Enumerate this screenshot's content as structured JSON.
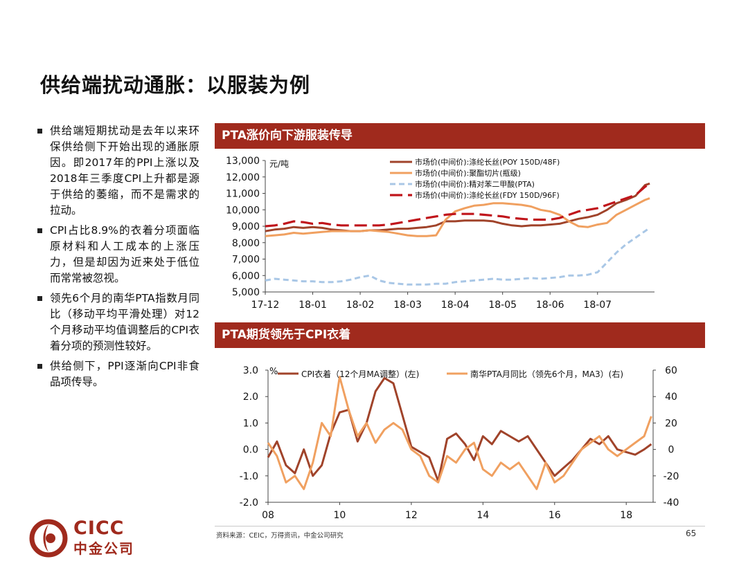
{
  "page": {
    "title": "供给端扰动通胀：以服装为例",
    "bullets": [
      "供给端短期扰动是去年以来环保供给侧下开始出现的通胀原因。即2017年的PPI上涨以及2018年三季度CPI上升都是源于供给的萎缩，而不是需求的拉动。",
      "CPI占比8.9%的衣着分项面临原材料和人工成本的上涨压力，但是却因为近来处于低位而常常被忽视。",
      "领先6个月的南华PTA指数月同比（移动平均平滑处理）对12个月移动平均值调整后的CPI衣着分项的预测性较好。",
      "供给侧下，PPI逐渐向CPI非食品项传导。"
    ],
    "source": "资料来源：CEIC，万得资讯，中金公司研究",
    "page_number": "65",
    "logo": {
      "en": "CICC",
      "cn": "中金公司"
    }
  },
  "colors": {
    "accent": "#A02A1D",
    "poy": "#A0432A",
    "pet": "#F0A060",
    "pta": "#A9C7E6",
    "fdy": "#C0151B",
    "cpi": "#A0432A",
    "pta_yoy": "#F0A060"
  },
  "chart_data": [
    {
      "type": "line",
      "title": "PTA涨价向下游服装传导",
      "unit_label": "元/吨",
      "ylim": [
        5000,
        13000
      ],
      "yticks": [
        5000,
        6000,
        7000,
        8000,
        9000,
        10000,
        11000,
        12000,
        13000
      ],
      "ytick_labels": [
        "5,000",
        "6,000",
        "7,000",
        "8,000",
        "9,000",
        "10,000",
        "11,000",
        "12,000",
        "13,000"
      ],
      "xlim": [
        0,
        8.2
      ],
      "xticks": [
        0,
        1,
        2,
        3,
        4,
        5,
        6,
        7
      ],
      "xtick_labels": [
        "17-12",
        "18-01",
        "18-02",
        "18-03",
        "18-04",
        "18-05",
        "18-06",
        "18-07"
      ],
      "legend": "top-right",
      "series": [
        {
          "name": "市场价(中间价):涤纶长丝(POY 150D/48F)",
          "style": "solid",
          "x": [
            0,
            0.2,
            0.4,
            0.6,
            0.8,
            1.0,
            1.2,
            1.4,
            1.6,
            1.8,
            2.0,
            2.2,
            2.4,
            2.6,
            2.8,
            3.0,
            3.2,
            3.4,
            3.6,
            3.8,
            4.0,
            4.2,
            4.4,
            4.6,
            4.8,
            5.0,
            5.2,
            5.4,
            5.6,
            5.8,
            6.0,
            6.2,
            6.4,
            6.6,
            6.8,
            7.0,
            7.2,
            7.4,
            7.6,
            7.8,
            8.0,
            8.1
          ],
          "y": [
            8700,
            8800,
            8850,
            8950,
            8900,
            8950,
            8900,
            8800,
            8750,
            8700,
            8700,
            8750,
            8750,
            8800,
            8850,
            8850,
            8900,
            8950,
            9050,
            9300,
            9300,
            9350,
            9350,
            9350,
            9300,
            9150,
            9050,
            9000,
            9050,
            9050,
            9100,
            9150,
            9300,
            9450,
            9550,
            9700,
            10000,
            10400,
            10600,
            10850,
            11500,
            11600
          ]
        },
        {
          "name": "市场价(中间价):聚酯切片(瓶级)",
          "style": "solid",
          "x": [
            0,
            0.2,
            0.4,
            0.6,
            0.8,
            1.0,
            1.2,
            1.4,
            1.6,
            1.8,
            2.0,
            2.2,
            2.4,
            2.6,
            2.8,
            3.0,
            3.2,
            3.4,
            3.6,
            3.8,
            4.0,
            4.2,
            4.4,
            4.6,
            4.8,
            5.0,
            5.2,
            5.4,
            5.6,
            5.8,
            6.0,
            6.2,
            6.4,
            6.6,
            6.8,
            7.0,
            7.2,
            7.4,
            7.6,
            7.8,
            8.0,
            8.1
          ],
          "y": [
            8400,
            8450,
            8500,
            8600,
            8550,
            8600,
            8650,
            8700,
            8700,
            8700,
            8700,
            8750,
            8700,
            8650,
            8550,
            8450,
            8400,
            8400,
            8450,
            9400,
            9900,
            10100,
            10250,
            10300,
            10400,
            10400,
            10350,
            10300,
            10200,
            10000,
            9900,
            9700,
            9300,
            9000,
            8950,
            9100,
            9200,
            9700,
            10000,
            10300,
            10600,
            10700
          ]
        },
        {
          "name": "市场价(中间价):精对苯二甲酸(PTA)",
          "style": "dashed",
          "x": [
            0,
            0.2,
            0.4,
            0.6,
            0.8,
            1.0,
            1.2,
            1.4,
            1.6,
            1.8,
            2.0,
            2.2,
            2.4,
            2.6,
            2.8,
            3.0,
            3.2,
            3.4,
            3.6,
            3.8,
            4.0,
            4.2,
            4.4,
            4.6,
            4.8,
            5.0,
            5.2,
            5.4,
            5.6,
            5.8,
            6.0,
            6.2,
            6.4,
            6.6,
            6.8,
            7.0,
            7.2,
            7.4,
            7.6,
            7.8,
            8.0,
            8.1
          ],
          "y": [
            5700,
            5800,
            5750,
            5700,
            5650,
            5650,
            5600,
            5600,
            5650,
            5750,
            5900,
            6000,
            5700,
            5550,
            5500,
            5450,
            5450,
            5450,
            5500,
            5500,
            5600,
            5650,
            5700,
            5750,
            5800,
            5750,
            5750,
            5800,
            5850,
            5800,
            5850,
            5900,
            6000,
            6000,
            6050,
            6200,
            6800,
            7400,
            7900,
            8300,
            8700,
            8900
          ]
        },
        {
          "name": "市场价(中间价):涤纶长丝(FDY 150D/96F)",
          "style": "longdash",
          "x": [
            0,
            0.2,
            0.4,
            0.6,
            0.8,
            1.0,
            1.2,
            1.4,
            1.6,
            1.8,
            2.0,
            2.2,
            2.4,
            2.6,
            2.8,
            3.0,
            3.2,
            3.4,
            3.6,
            3.8,
            4.0,
            4.2,
            4.4,
            4.6,
            4.8,
            5.0,
            5.2,
            5.4,
            5.6,
            5.8,
            6.0,
            6.2,
            6.4,
            6.6,
            6.8,
            7.0,
            7.2,
            7.4,
            7.6,
            7.8,
            8.0,
            8.1
          ],
          "y": [
            9000,
            9050,
            9150,
            9300,
            9250,
            9150,
            9200,
            9100,
            9050,
            9050,
            9050,
            9050,
            9050,
            9100,
            9200,
            9300,
            9400,
            9500,
            9600,
            9700,
            9750,
            9750,
            9750,
            9700,
            9650,
            9600,
            9500,
            9450,
            9400,
            9400,
            9400,
            9500,
            9700,
            9900,
            10000,
            10100,
            10300,
            10500,
            10700,
            10900,
            11400,
            11600
          ]
        }
      ]
    },
    {
      "type": "line",
      "title": "PTA期货领先于CPI衣着",
      "unit_label": "%",
      "ylim": [
        -2.0,
        3.0
      ],
      "yticks": [
        -2.0,
        -1.0,
        0.0,
        1.0,
        2.0,
        3.0
      ],
      "ytick_labels": [
        "-2.0",
        "-1.0",
        "0.0",
        "1.0",
        "2.0",
        "3.0"
      ],
      "y2lim": [
        -40,
        60
      ],
      "y2ticks": [
        -40,
        -20,
        0,
        20,
        40,
        60
      ],
      "y2tick_labels": [
        "-40",
        "-20",
        "0",
        "20",
        "40",
        "60"
      ],
      "xlim": [
        2008,
        2018.75
      ],
      "xticks": [
        2008,
        2010,
        2012,
        2014,
        2016,
        2018
      ],
      "xtick_labels": [
        "08",
        "10",
        "12",
        "14",
        "16",
        "18"
      ],
      "legend": "top",
      "series": [
        {
          "name": "CPI衣着（12个月MA调整）(左)",
          "axis": "left",
          "x": [
            2008,
            2008.25,
            2008.5,
            2008.75,
            2009,
            2009.25,
            2009.5,
            2009.75,
            2010,
            2010.25,
            2010.5,
            2010.75,
            2011,
            2011.25,
            2011.5,
            2011.75,
            2012,
            2012.25,
            2012.5,
            2012.75,
            2013,
            2013.25,
            2013.5,
            2013.75,
            2014,
            2014.25,
            2014.5,
            2014.75,
            2015,
            2015.25,
            2015.5,
            2015.75,
            2016,
            2016.25,
            2016.5,
            2016.75,
            2017,
            2017.25,
            2017.5,
            2017.75,
            2018,
            2018.25,
            2018.5,
            2018.7
          ],
          "y": [
            -0.3,
            0.3,
            -0.6,
            -0.9,
            0.0,
            -1.0,
            -0.6,
            0.6,
            1.4,
            1.5,
            0.3,
            1.0,
            2.2,
            2.7,
            2.5,
            1.3,
            0.1,
            -0.1,
            -0.3,
            -1.2,
            0.4,
            0.6,
            0.2,
            -0.4,
            0.5,
            0.2,
            0.7,
            0.5,
            0.3,
            0.5,
            0.0,
            -0.5,
            -1.0,
            -0.7,
            -0.4,
            0.0,
            0.4,
            0.2,
            0.5,
            0.0,
            -0.1,
            -0.2,
            0.0,
            0.2
          ]
        },
        {
          "name": "南华PTA月同比（领先6个月，MA3）(右)",
          "axis": "right",
          "x": [
            2008,
            2008.25,
            2008.5,
            2008.75,
            2009,
            2009.25,
            2009.5,
            2009.75,
            2010,
            2010.25,
            2010.5,
            2010.75,
            2011,
            2011.25,
            2011.5,
            2011.75,
            2012,
            2012.25,
            2012.5,
            2012.75,
            2013,
            2013.25,
            2013.5,
            2013.75,
            2014,
            2014.25,
            2014.5,
            2014.75,
            2015,
            2015.25,
            2015.5,
            2015.75,
            2016,
            2016.25,
            2016.5,
            2016.75,
            2017,
            2017.25,
            2017.5,
            2017.75,
            2018,
            2018.25,
            2018.5,
            2018.7
          ],
          "y": [
            5,
            -5,
            -25,
            -20,
            -30,
            -10,
            20,
            10,
            55,
            30,
            10,
            20,
            5,
            15,
            20,
            15,
            0,
            -5,
            -20,
            -25,
            -5,
            -10,
            0,
            5,
            -15,
            -20,
            -10,
            -15,
            -10,
            -20,
            -30,
            -10,
            -25,
            -20,
            -10,
            0,
            5,
            10,
            0,
            -5,
            0,
            5,
            10,
            25
          ]
        }
      ]
    }
  ]
}
